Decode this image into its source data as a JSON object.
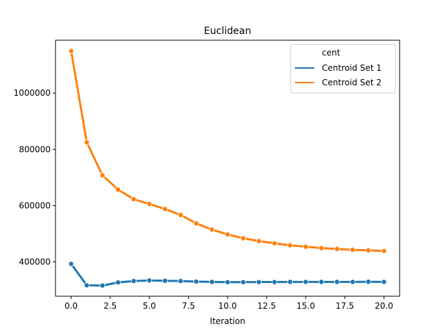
{
  "chart_data": {
    "type": "line",
    "title": "Euclidean",
    "xlabel": "Iteration",
    "ylabel": "",
    "xlim": [
      -1.0,
      21.0
    ],
    "ylim": [
      278000,
      1188000
    ],
    "xticks": [
      0.0,
      2.5,
      5.0,
      7.5,
      10.0,
      12.5,
      15.0,
      17.5,
      20.0
    ],
    "xtick_labels": [
      "0.0",
      "2.5",
      "5.0",
      "7.5",
      "10.0",
      "12.5",
      "15.0",
      "17.5",
      "20.0"
    ],
    "yticks": [
      400000,
      600000,
      800000,
      1000000
    ],
    "ytick_labels": [
      "400000",
      "600000",
      "800000",
      "1000000"
    ],
    "grid": false,
    "legend": {
      "title": "cent",
      "position": "top-right"
    },
    "x": [
      0,
      1,
      2,
      3,
      4,
      5,
      6,
      7,
      8,
      9,
      10,
      11,
      12,
      13,
      14,
      15,
      16,
      17,
      18,
      19,
      20
    ],
    "series": [
      {
        "name": "Centroid Set 1",
        "color": "#1f77b4",
        "values": [
          393000,
          317000,
          316000,
          327000,
          332000,
          334000,
          333000,
          332000,
          330000,
          329000,
          328000,
          328000,
          328500,
          328500,
          329000,
          329000,
          329000,
          329000,
          329000,
          329500,
          329000
        ]
      },
      {
        "name": "Centroid Set 2",
        "color": "#ff7f0e",
        "values": [
          1150000,
          825000,
          708000,
          657000,
          623000,
          606000,
          588000,
          567000,
          537000,
          515000,
          498000,
          484000,
          474000,
          466000,
          459000,
          454000,
          449000,
          446000,
          443000,
          441000,
          439000
        ]
      }
    ]
  }
}
